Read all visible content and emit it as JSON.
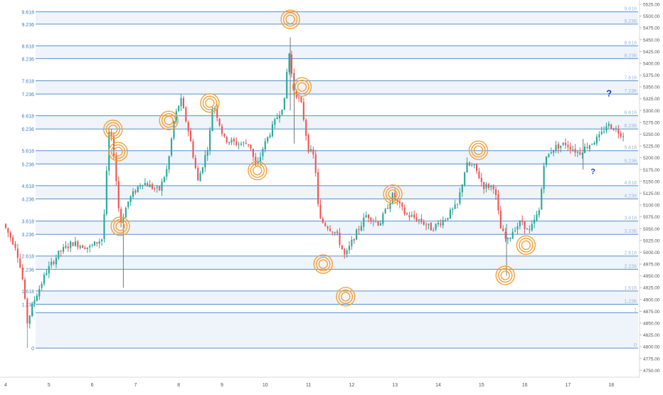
{
  "chart_data": {
    "type": "candlestick",
    "title": "",
    "xlabel": "",
    "ylabel": "",
    "ylim": [
      4740,
      5525
    ],
    "grid": false,
    "price_ticks": [
      5525,
      5500,
      5475,
      5450,
      5425,
      5400,
      5375,
      5350,
      5325,
      5300,
      5275,
      5250,
      5225,
      5200,
      5175,
      5150,
      5125,
      5100,
      5075,
      5050,
      5025,
      5000,
      4975,
      4950,
      4925,
      4900,
      4875,
      4850,
      4825,
      4800,
      4775,
      4750
    ],
    "price_tick_labels": [
      "5525.00",
      "5500.00",
      "5475.00",
      "5450.00",
      "5425.00",
      "5400.00",
      "5375.00",
      "5350.00",
      "5325.00",
      "5300.00",
      "5275.00",
      "5250.00",
      "5225.00",
      "5200.00",
      "5175.00",
      "5150.00",
      "5125.00",
      "5100.00",
      "5075.00",
      "5050.00",
      "5025.00",
      "5000.00",
      "4975.00",
      "4950.00",
      "4925.00",
      "4900.00",
      "4875.00",
      "4850.00",
      "4825.00",
      "4800.00",
      "4775.00",
      "4750.00"
    ],
    "date_ticks": [
      {
        "label": "4",
        "d": 0.0
      },
      {
        "label": "5",
        "d": 1.0
      },
      {
        "label": "6",
        "d": 2.0
      },
      {
        "label": "7",
        "d": 3.0
      },
      {
        "label": "8",
        "d": 4.0
      },
      {
        "label": "9",
        "d": 5.0
      },
      {
        "label": "10",
        "d": 6.0
      },
      {
        "label": "11",
        "d": 7.0
      },
      {
        "label": "12",
        "d": 8.0
      },
      {
        "label": "13",
        "d": 9.0
      },
      {
        "label": "14",
        "d": 10.0
      },
      {
        "label": "15",
        "d": 11.0
      },
      {
        "label": "16",
        "d": 12.0
      },
      {
        "label": "17",
        "d": 13.0
      },
      {
        "label": "18",
        "d": 14.0
      }
    ],
    "fib_levels": [
      {
        "label": "9.618",
        "price": 5509
      },
      {
        "label": "9.236",
        "price": 5483
      },
      {
        "label": "8.618",
        "price": 5437
      },
      {
        "label": "8.236",
        "price": 5410
      },
      {
        "label": "7.618",
        "price": 5363
      },
      {
        "label": "7.236",
        "price": 5335
      },
      {
        "label": "6.618",
        "price": 5289
      },
      {
        "label": "6.236",
        "price": 5261
      },
      {
        "label": "5.618",
        "price": 5215
      },
      {
        "label": "5.236",
        "price": 5187
      },
      {
        "label": "4.618",
        "price": 5141
      },
      {
        "label": "4.236",
        "price": 5113
      },
      {
        "label": "3.618",
        "price": 5066
      },
      {
        "label": "3.236",
        "price": 5038
      },
      {
        "label": "2.618",
        "price": 4992
      },
      {
        "label": "2.236",
        "price": 4964
      },
      {
        "label": "1.618",
        "price": 4918
      },
      {
        "label": "1.236",
        "price": 4890
      },
      {
        "label": "1",
        "price": 4872
      },
      {
        "label": "0",
        "price": 4797
      }
    ],
    "fib_anchor": {
      "d": 0.5
    },
    "price_path": [
      {
        "d": 0.0,
        "p": 5060
      },
      {
        "d": 0.3,
        "p": 5010
      },
      {
        "d": 0.45,
        "p": 4940
      },
      {
        "d": 0.55,
        "p": 4850
      },
      {
        "d": 0.7,
        "p": 4895
      },
      {
        "d": 1.0,
        "p": 4960
      },
      {
        "d": 1.3,
        "p": 5000
      },
      {
        "d": 1.6,
        "p": 5020
      },
      {
        "d": 2.0,
        "p": 5010
      },
      {
        "d": 2.3,
        "p": 5030
      },
      {
        "d": 2.45,
        "p": 5260
      },
      {
        "d": 2.55,
        "p": 5215
      },
      {
        "d": 2.7,
        "p": 5060
      },
      {
        "d": 2.9,
        "p": 5110
      },
      {
        "d": 3.2,
        "p": 5150
      },
      {
        "d": 3.6,
        "p": 5130
      },
      {
        "d": 3.8,
        "p": 5180
      },
      {
        "d": 3.95,
        "p": 5280
      },
      {
        "d": 4.1,
        "p": 5325
      },
      {
        "d": 4.3,
        "p": 5250
      },
      {
        "d": 4.5,
        "p": 5150
      },
      {
        "d": 4.75,
        "p": 5230
      },
      {
        "d": 4.85,
        "p": 5320
      },
      {
        "d": 5.1,
        "p": 5240
      },
      {
        "d": 5.4,
        "p": 5230
      },
      {
        "d": 5.7,
        "p": 5230
      },
      {
        "d": 5.85,
        "p": 5175
      },
      {
        "d": 6.0,
        "p": 5220
      },
      {
        "d": 6.3,
        "p": 5280
      },
      {
        "d": 6.5,
        "p": 5320
      },
      {
        "d": 6.6,
        "p": 5430
      },
      {
        "d": 6.7,
        "p": 5350
      },
      {
        "d": 6.9,
        "p": 5310
      },
      {
        "d": 7.05,
        "p": 5220
      },
      {
        "d": 7.2,
        "p": 5200
      },
      {
        "d": 7.3,
        "p": 5070
      },
      {
        "d": 7.5,
        "p": 5055
      },
      {
        "d": 7.7,
        "p": 5040
      },
      {
        "d": 7.9,
        "p": 4990
      },
      {
        "d": 8.1,
        "p": 5030
      },
      {
        "d": 8.4,
        "p": 5080
      },
      {
        "d": 8.7,
        "p": 5060
      },
      {
        "d": 9.0,
        "p": 5120
      },
      {
        "d": 9.3,
        "p": 5080
      },
      {
        "d": 9.6,
        "p": 5070
      },
      {
        "d": 9.9,
        "p": 5050
      },
      {
        "d": 10.2,
        "p": 5070
      },
      {
        "d": 10.5,
        "p": 5100
      },
      {
        "d": 10.7,
        "p": 5185
      },
      {
        "d": 10.9,
        "p": 5180
      },
      {
        "d": 11.1,
        "p": 5140
      },
      {
        "d": 11.35,
        "p": 5140
      },
      {
        "d": 11.5,
        "p": 5050
      },
      {
        "d": 11.65,
        "p": 5020
      },
      {
        "d": 11.8,
        "p": 5050
      },
      {
        "d": 12.0,
        "p": 5065
      },
      {
        "d": 12.15,
        "p": 5040
      },
      {
        "d": 12.25,
        "p": 5060
      },
      {
        "d": 12.4,
        "p": 5090
      },
      {
        "d": 12.5,
        "p": 5190
      },
      {
        "d": 12.7,
        "p": 5220
      },
      {
        "d": 13.0,
        "p": 5230
      },
      {
        "d": 13.3,
        "p": 5210
      },
      {
        "d": 13.5,
        "p": 5225
      },
      {
        "d": 13.8,
        "p": 5245
      },
      {
        "d": 13.95,
        "p": 5270
      },
      {
        "d": 14.1,
        "p": 5265
      },
      {
        "d": 14.3,
        "p": 5250
      }
    ],
    "wick_spikes": [
      {
        "d": 2.72,
        "lo": 4925,
        "hi": 5080
      },
      {
        "d": 6.58,
        "lo": 5300,
        "hi": 5455
      },
      {
        "d": 6.67,
        "lo": 5230,
        "hi": 5380
      },
      {
        "d": 11.58,
        "lo": 4950,
        "hi": 5060
      },
      {
        "d": 13.35,
        "lo": 5175,
        "hi": 5240
      }
    ],
    "circled_points": [
      {
        "d": 2.48,
        "p": 5260
      },
      {
        "d": 2.6,
        "p": 5213
      },
      {
        "d": 2.65,
        "p": 5055
      },
      {
        "d": 3.77,
        "p": 5279
      },
      {
        "d": 4.72,
        "p": 5316
      },
      {
        "d": 5.82,
        "p": 5173
      },
      {
        "d": 6.58,
        "p": 5493
      },
      {
        "d": 6.85,
        "p": 5350
      },
      {
        "d": 7.34,
        "p": 4975
      },
      {
        "d": 7.86,
        "p": 4906
      },
      {
        "d": 8.95,
        "p": 5123
      },
      {
        "d": 10.93,
        "p": 5216
      },
      {
        "d": 11.55,
        "p": 4951
      },
      {
        "d": 12.03,
        "p": 5015
      }
    ],
    "annotations": [
      {
        "text": "?",
        "d": 13.95,
        "p": 5330,
        "size": 13
      },
      {
        "text": "?",
        "d": 13.58,
        "p": 5166,
        "size": 11
      }
    ],
    "colors": {
      "up": "#26a69a",
      "down": "#ef5350",
      "fib_line": "#3d7fc4",
      "fib_label": "#3d7fc4",
      "fib_label_right": "#9bbad9",
      "band_fill": "#eef4fa",
      "circle": "#f3a13a",
      "annotation": "#1a3bd6",
      "axis_text": "#555555",
      "axis_line": "#d9d9d9"
    }
  }
}
